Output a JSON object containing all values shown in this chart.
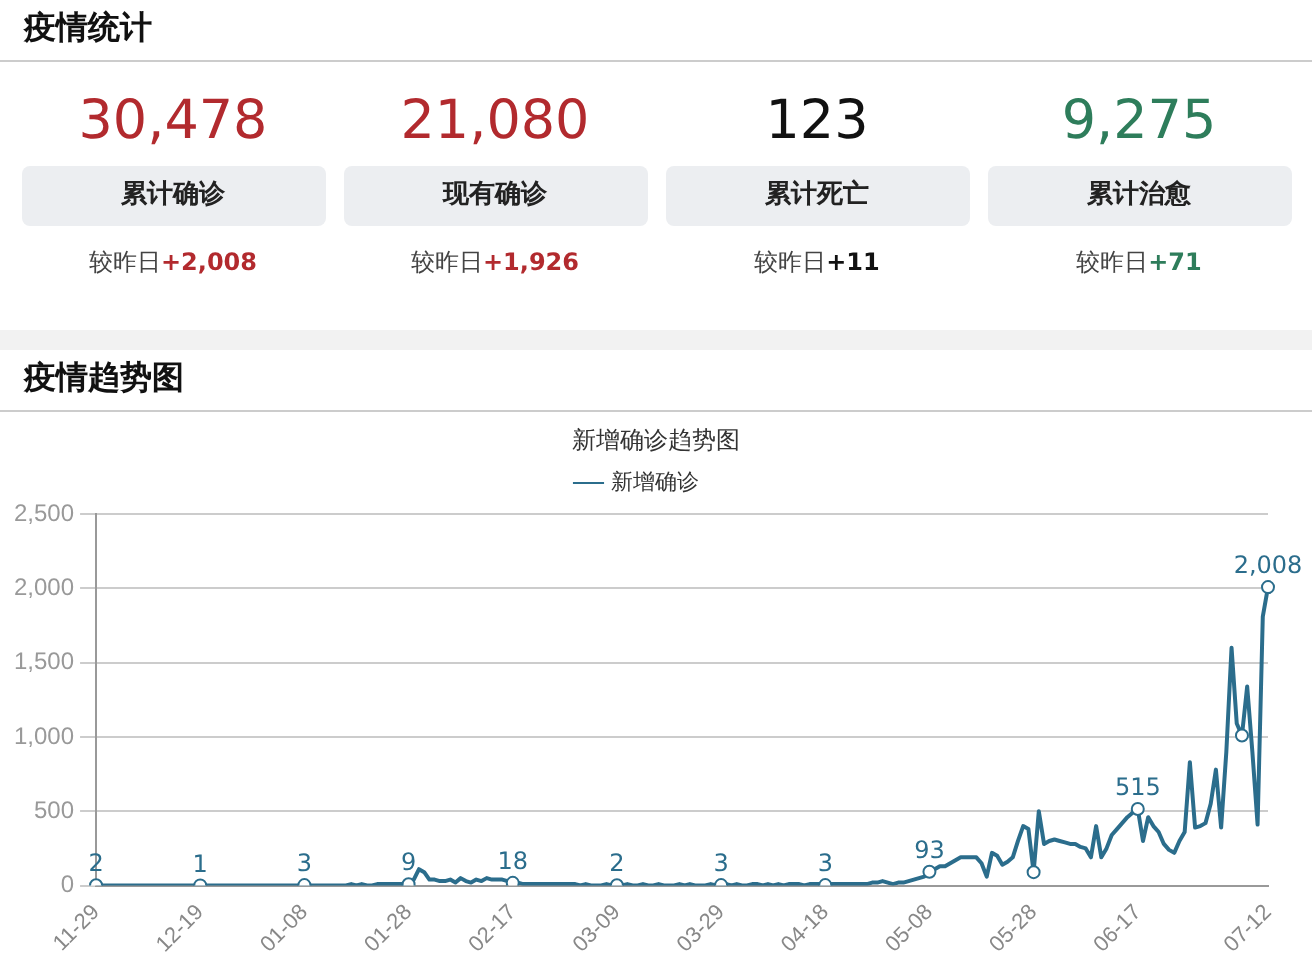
{
  "chart_data": [
    {
      "type": "other",
      "title": "疫情统计",
      "colors": [
        "#b22a2e",
        "#b22a2e",
        "#111111",
        "#2e7d5b"
      ],
      "annotations": [
        "30,478",
        "累计确诊",
        "较昨日",
        "+2,008",
        "21,080",
        "现有确诊",
        "较昨日",
        "+1,926",
        "123",
        "累计死亡",
        "较昨日",
        "+11",
        "9,275",
        "累计治愈",
        "较昨日",
        "+71"
      ]
    },
    {
      "type": "line",
      "title": "疫情趋势图",
      "subtitle": "新增确诊趋势图",
      "legend": "top",
      "grid": "y",
      "categories": [
        "11-29",
        null,
        null,
        null,
        null,
        null,
        null,
        null,
        null,
        null,
        null,
        null,
        null,
        null,
        null,
        null,
        null,
        null,
        null,
        null,
        "12-19",
        null,
        null,
        null,
        null,
        null,
        null,
        null,
        null,
        null,
        null,
        null,
        null,
        null,
        null,
        null,
        null,
        null,
        null,
        null,
        "01-08",
        null,
        null,
        null,
        null,
        null,
        null,
        null,
        null,
        null,
        null,
        null,
        null,
        null,
        null,
        null,
        null,
        null,
        null,
        null,
        "01-28",
        null,
        null,
        null,
        null,
        null,
        null,
        null,
        null,
        null,
        null,
        null,
        null,
        null,
        null,
        null,
        null,
        null,
        null,
        null,
        "02-17",
        null,
        null,
        null,
        null,
        null,
        null,
        null,
        null,
        null,
        null,
        null,
        null,
        null,
        null,
        null,
        null,
        null,
        null,
        null,
        "03-09",
        null,
        null,
        null,
        null,
        null,
        null,
        null,
        null,
        null,
        null,
        null,
        null,
        null,
        null,
        null,
        null,
        null,
        null,
        null,
        "03-29",
        null,
        null,
        null,
        null,
        null,
        null,
        null,
        null,
        null,
        null,
        null,
        null,
        null,
        null,
        null,
        null,
        null,
        null,
        null,
        "04-18",
        null,
        null,
        null,
        null,
        null,
        null,
        null,
        null,
        null,
        null,
        null,
        null,
        null,
        null,
        null,
        null,
        null,
        null,
        null,
        "05-08",
        null,
        null,
        null,
        null,
        null,
        null,
        null,
        null,
        null,
        null,
        null,
        null,
        null,
        null,
        null,
        null,
        null,
        null,
        null,
        "05-28",
        null,
        null,
        null,
        null,
        null,
        null,
        null,
        null,
        null,
        null,
        null,
        null,
        null,
        null,
        null,
        null,
        null,
        null,
        null,
        "06-17",
        null,
        null,
        null,
        null,
        null,
        null,
        null,
        null,
        null,
        null,
        null,
        null,
        null,
        null,
        null,
        null,
        null,
        null,
        null,
        null,
        null,
        null,
        null,
        null,
        "07-12"
      ],
      "ylim": [
        0,
        2500
      ],
      "yticks": [
        0,
        500,
        {
          "value": 1000,
          "label": "1,000"
        },
        {
          "value": 1500,
          "label": "1,500"
        },
        {
          "value": 2000,
          "label": "2,000"
        },
        {
          "value": 2500,
          "label": "2,500"
        }
      ],
      "series": [
        {
          "name": "新增确诊",
          "color": "#2b6d8c",
          "values": [
            2,
            0,
            0,
            0,
            0,
            0,
            0,
            0,
            0,
            0,
            0,
            0,
            0,
            0,
            0,
            0,
            0,
            0,
            0,
            0,
            1,
            0,
            0,
            0,
            0,
            0,
            0,
            0,
            0,
            0,
            0,
            0,
            0,
            0,
            0,
            0,
            0,
            0,
            0,
            0,
            3,
            0,
            0,
            0,
            0,
            0,
            0,
            0,
            0,
            10,
            0,
            10,
            0,
            0,
            10,
            10,
            10,
            10,
            10,
            10,
            9,
            40,
            110,
            90,
            40,
            40,
            30,
            30,
            40,
            20,
            50,
            30,
            20,
            40,
            30,
            50,
            40,
            40,
            40,
            30,
            18,
            20,
            10,
            10,
            10,
            10,
            10,
            10,
            10,
            10,
            10,
            10,
            10,
            0,
            10,
            0,
            0,
            0,
            10,
            0,
            2,
            0,
            10,
            0,
            0,
            10,
            0,
            0,
            10,
            0,
            0,
            0,
            10,
            0,
            10,
            0,
            0,
            0,
            10,
            0,
            3,
            10,
            0,
            10,
            0,
            0,
            10,
            10,
            0,
            10,
            0,
            10,
            0,
            10,
            10,
            10,
            0,
            10,
            10,
            10,
            3,
            10,
            10,
            10,
            10,
            10,
            10,
            10,
            10,
            20,
            20,
            30,
            20,
            10,
            20,
            20,
            30,
            40,
            50,
            60,
            93,
            110,
            130,
            130,
            150,
            170,
            190,
            190,
            190,
            190,
            150,
            60,
            220,
            200,
            140,
            160,
            190,
            300,
            400,
            380,
            90,
            500,
            280,
            300,
            310,
            300,
            290,
            280,
            280,
            260,
            250,
            190,
            400,
            190,
            250,
            340,
            380,
            420,
            460,
            490,
            515,
            300,
            460,
            400,
            360,
            280,
            240,
            220,
            300,
            360,
            830,
            390,
            400,
            420,
            550,
            780,
            390,
            900,
            1600,
            1090,
            1010,
            1340,
            900,
            410,
            1810,
            2008
          ],
          "value_labels": [
            "2",
            null,
            null,
            null,
            null,
            null,
            null,
            null,
            null,
            null,
            null,
            null,
            null,
            null,
            null,
            null,
            null,
            null,
            null,
            null,
            "1",
            null,
            null,
            null,
            null,
            null,
            null,
            null,
            null,
            null,
            null,
            null,
            null,
            null,
            null,
            null,
            null,
            null,
            null,
            null,
            "3",
            null,
            null,
            null,
            null,
            null,
            null,
            null,
            null,
            null,
            null,
            null,
            null,
            null,
            null,
            null,
            null,
            null,
            null,
            null,
            "9",
            null,
            null,
            null,
            null,
            null,
            null,
            null,
            null,
            null,
            null,
            null,
            null,
            null,
            null,
            null,
            null,
            null,
            null,
            null,
            "18",
            null,
            null,
            null,
            null,
            null,
            null,
            null,
            null,
            null,
            null,
            null,
            null,
            null,
            null,
            null,
            null,
            null,
            null,
            null,
            "2",
            null,
            null,
            null,
            null,
            null,
            null,
            null,
            null,
            null,
            null,
            null,
            null,
            null,
            null,
            null,
            null,
            null,
            null,
            null,
            "3",
            null,
            null,
            null,
            null,
            null,
            null,
            null,
            null,
            null,
            null,
            null,
            null,
            null,
            null,
            null,
            null,
            null,
            null,
            null,
            "3",
            null,
            null,
            null,
            null,
            null,
            null,
            null,
            null,
            null,
            null,
            null,
            null,
            null,
            null,
            null,
            null,
            null,
            null,
            null,
            "93",
            null,
            null,
            null,
            null,
            null,
            null,
            null,
            null,
            null,
            null,
            null,
            null,
            null,
            null,
            null,
            null,
            null,
            null,
            null,
            null,
            null,
            null,
            null,
            null,
            null,
            null,
            null,
            null,
            null,
            null,
            null,
            null,
            null,
            null,
            null,
            null,
            null,
            null,
            null,
            "515",
            null,
            null,
            null,
            null,
            null,
            null,
            null,
            null,
            null,
            null,
            null,
            null,
            null,
            null,
            null,
            null,
            null,
            null,
            null,
            null,
            null,
            null,
            null,
            null,
            "2,008"
          ]
        }
      ]
    }
  ]
}
